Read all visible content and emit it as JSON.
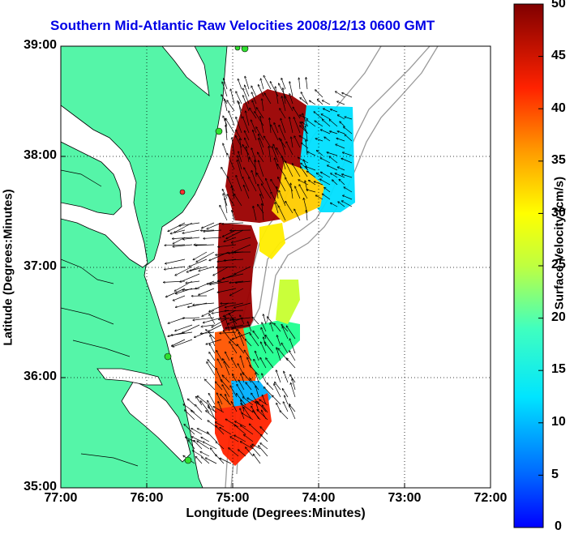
{
  "title": "Southern Mid-Atlantic Raw Velocities 2008/12/13 0600 GMT",
  "xlabel": "Longitude (Degrees:Minutes)",
  "ylabel": "Latitude (Degrees:Minutes)",
  "x_ticks": [
    "77:00",
    "76:00",
    "75:00",
    "74:00",
    "73:00",
    "72:00"
  ],
  "y_ticks": [
    "39:00",
    "38:00",
    "37:00",
    "36:00",
    "35:00"
  ],
  "colorbar": {
    "label": "Surface Velocity (cm/s)",
    "ticks": [
      "50",
      "45",
      "40",
      "35",
      "30",
      "25",
      "20",
      "15",
      "10",
      "5",
      "0"
    ],
    "range": [
      0,
      50
    ]
  },
  "colors": {
    "land": "#55f5a8",
    "title": "#0000e6",
    "contour": "#9a9a9a"
  },
  "stations": {
    "count_green": 5,
    "count_red": 1
  }
}
